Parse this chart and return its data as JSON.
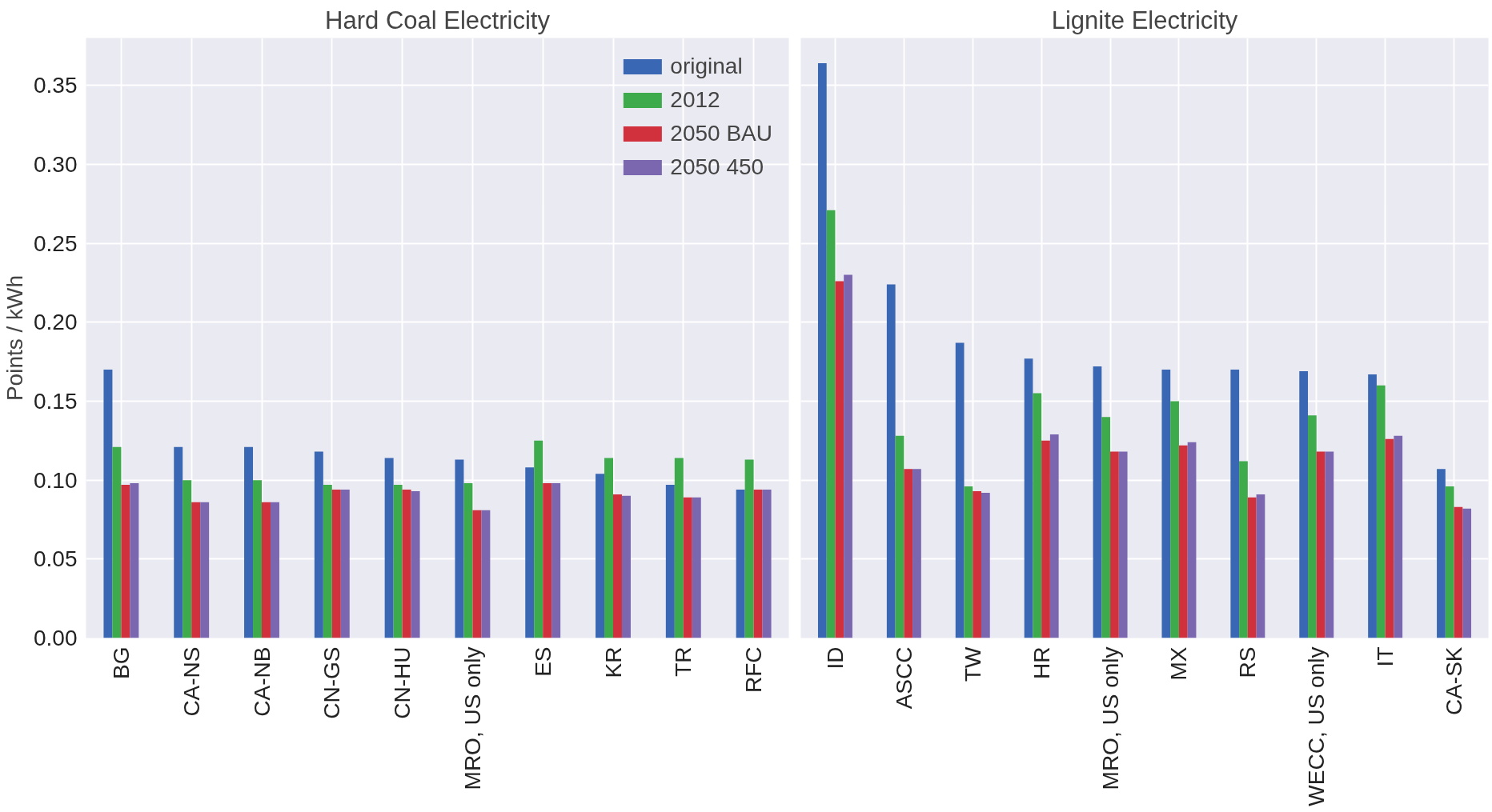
{
  "chart_data": [
    {
      "type": "bar",
      "title": "Hard Coal Electricity",
      "ylabel": "Points / kWh",
      "categories": [
        "BG",
        "CA-NS",
        "CA-NB",
        "CN-GS",
        "CN-HU",
        "MRO, US only",
        "ES",
        "KR",
        "TR",
        "RFC"
      ],
      "series": [
        {
          "name": "original",
          "color": "#3a67b3",
          "values": [
            0.17,
            0.121,
            0.121,
            0.118,
            0.114,
            0.113,
            0.108,
            0.104,
            0.097,
            0.094
          ]
        },
        {
          "name": "2012",
          "color": "#3daa4c",
          "values": [
            0.121,
            0.1,
            0.1,
            0.097,
            0.097,
            0.098,
            0.125,
            0.114,
            0.114,
            0.113
          ]
        },
        {
          "name": "2050 BAU",
          "color": "#d1313d",
          "values": [
            0.097,
            0.086,
            0.086,
            0.094,
            0.094,
            0.081,
            0.098,
            0.091,
            0.089,
            0.094
          ]
        },
        {
          "name": "2050 450",
          "color": "#7b66b0",
          "values": [
            0.098,
            0.086,
            0.086,
            0.094,
            0.093,
            0.081,
            0.098,
            0.09,
            0.089,
            0.094
          ]
        }
      ],
      "ylim": [
        0,
        0.38
      ],
      "yticks": [
        {
          "value": 0,
          "label": "0.00"
        },
        0.05,
        {
          "value": 0.1,
          "label": "0.10"
        },
        0.15,
        {
          "value": 0.2,
          "label": "0.20"
        },
        0.25,
        {
          "value": 0.3,
          "label": "0.30"
        },
        0.35
      ],
      "grid": true,
      "legend": "top right"
    },
    {
      "type": "bar",
      "title": "Lignite Electricity",
      "categories": [
        "ID",
        "ASCC",
        "TW",
        "HR",
        "MRO, US only",
        "MX",
        "RS",
        "WECC, US only",
        "IT",
        "CA-SK"
      ],
      "series": [
        {
          "color": "#3a67b3",
          "values": [
            0.364,
            0.224,
            0.187,
            0.177,
            0.172,
            0.17,
            0.17,
            0.169,
            0.167,
            0.107
          ]
        },
        {
          "color": "#3daa4c",
          "values": [
            0.271,
            0.128,
            0.096,
            0.155,
            0.14,
            0.15,
            0.112,
            0.141,
            0.16,
            0.096
          ]
        },
        {
          "color": "#d1313d",
          "values": [
            0.226,
            0.107,
            0.093,
            0.125,
            0.118,
            0.122,
            0.089,
            0.118,
            0.126,
            0.083
          ]
        },
        {
          "color": "#7b66b0",
          "values": [
            0.23,
            0.107,
            0.092,
            0.129,
            0.118,
            0.124,
            0.091,
            0.118,
            0.128,
            0.082
          ]
        }
      ],
      "ylim": [
        0,
        0.38
      ],
      "yticks": [
        0,
        0.05,
        0.1,
        0.15,
        0.2,
        0.25,
        0.3,
        0.35
      ],
      "grid": true,
      "tick_labels": "x"
    }
  ]
}
